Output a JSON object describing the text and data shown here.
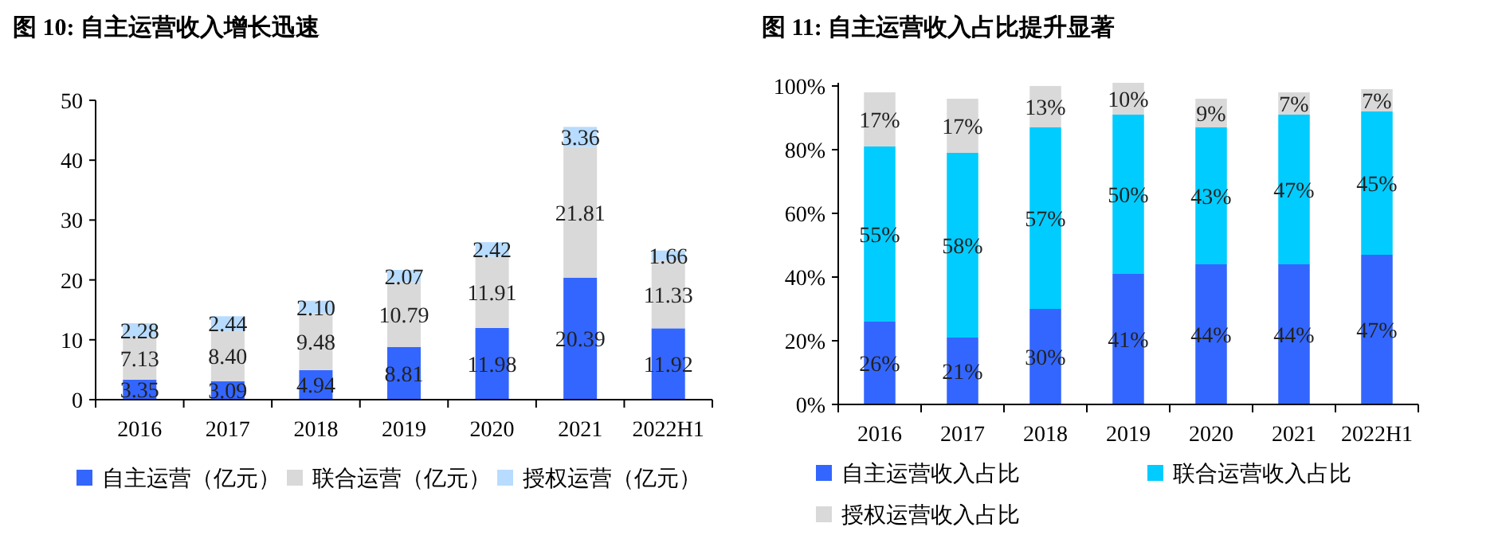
{
  "chart_data": [
    {
      "type": "bar",
      "stacked": true,
      "title": "图 10: 自主运营收入增长迅速",
      "categories": [
        "2016",
        "2017",
        "2018",
        "2019",
        "2020",
        "2021",
        "2022H1"
      ],
      "ylim": [
        0,
        50
      ],
      "yticks": [
        0,
        10,
        20,
        30,
        40,
        50
      ],
      "grid": false,
      "legend": "bottom",
      "series": [
        {
          "name": "自主运营（亿元）",
          "color": "#3366ff",
          "values": [
            3.35,
            3.09,
            4.94,
            8.81,
            11.98,
            20.39,
            11.92
          ],
          "value_labels": [
            "3.35",
            "3.09",
            "4.94",
            "8.81",
            "11.98",
            "20.39",
            "11.92"
          ]
        },
        {
          "name": "联合运营（亿元）",
          "color": "#d9d9d9",
          "values": [
            7.13,
            8.4,
            9.48,
            10.79,
            11.91,
            21.81,
            11.33
          ],
          "value_labels": [
            "7.13",
            "8.40",
            "9.48",
            "10.79",
            "11.91",
            "21.81",
            "11.33"
          ]
        },
        {
          "name": "授权运营（亿元）",
          "color": "#b8dcff",
          "values": [
            2.28,
            2.44,
            2.1,
            2.07,
            2.42,
            3.36,
            1.66
          ],
          "value_labels": [
            "2.28",
            "2.44",
            "2.10",
            "2.07",
            "2.42",
            "3.36",
            "1.66"
          ]
        }
      ]
    },
    {
      "type": "bar",
      "stacked": true,
      "title": "图 11: 自主运营收入占比提升显著",
      "categories": [
        "2016",
        "2017",
        "2018",
        "2019",
        "2020",
        "2021",
        "2022H1"
      ],
      "ylim": [
        0,
        101
      ],
      "yticks": [
        {
          "value": 0,
          "label": "0%"
        },
        {
          "value": 20,
          "label": "20%"
        },
        {
          "value": 40,
          "label": "40%"
        },
        {
          "value": 60,
          "label": "60%"
        },
        {
          "value": 80,
          "label": "80%"
        },
        {
          "value": 100,
          "label": "100%"
        }
      ],
      "grid": false,
      "legend": "bottom",
      "series": [
        {
          "name": "自主运营收入占比",
          "color": "#3366ff",
          "values": [
            26,
            21,
            30,
            41,
            44,
            44,
            47
          ],
          "value_labels": [
            "26%",
            "21%",
            "30%",
            "41%",
            "44%",
            "44%",
            "47%"
          ]
        },
        {
          "name": "联合运营收入占比",
          "color": "#00ccff",
          "values": [
            55,
            58,
            57,
            50,
            43,
            47,
            45
          ],
          "value_labels": [
            "55%",
            "58%",
            "57%",
            "50%",
            "43%",
            "47%",
            "45%"
          ]
        },
        {
          "name": "授权运营收入占比",
          "color": "#d9d9d9",
          "values": [
            17,
            17,
            13,
            10,
            9,
            7,
            7
          ],
          "value_labels": [
            "17%",
            "17%",
            "13%",
            "10%",
            "9%",
            "7%",
            "7%"
          ]
        }
      ]
    }
  ]
}
